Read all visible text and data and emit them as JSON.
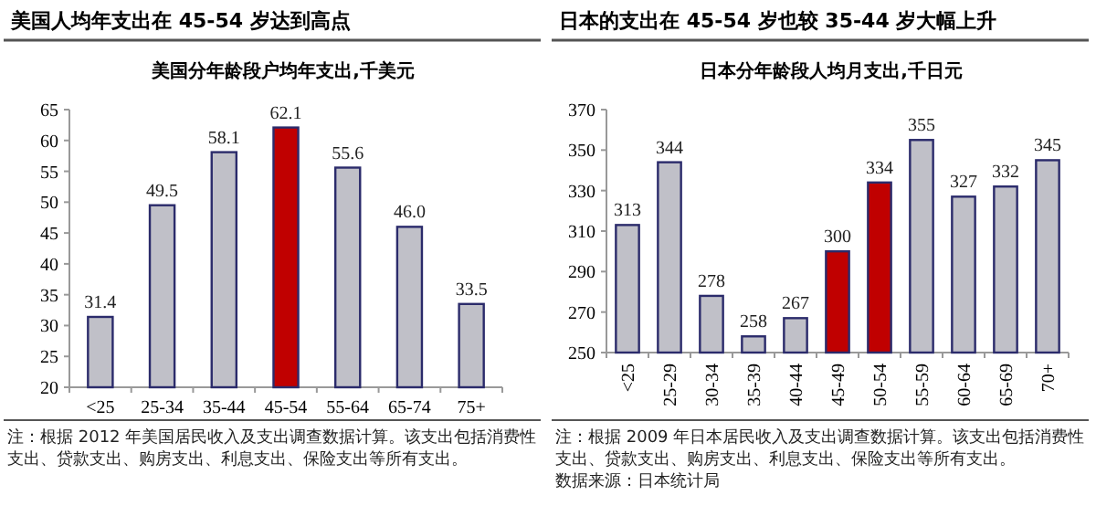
{
  "chart_data": [
    {
      "type": "bar",
      "title": "美国人均年支出在 45-54 岁达到高点",
      "subtitle": "美国分年龄段户均年支出,千美元",
      "categories": [
        "<25",
        "25-34",
        "35-44",
        "45-54",
        "55-64",
        "65-74",
        "75+"
      ],
      "values": [
        31.4,
        49.5,
        58.1,
        62.1,
        55.6,
        46.0,
        33.5
      ],
      "value_labels": [
        "31.4",
        "49.5",
        "58.1",
        "62.1",
        "55.6",
        "46.0",
        "33.5"
      ],
      "colors": [
        "#c0c0c8",
        "#c0c0c8",
        "#c0c0c8",
        "#c00000",
        "#c0c0c8",
        "#c0c0c8",
        "#c0c0c8"
      ],
      "ylim": [
        20,
        65
      ],
      "yticks": [
        20,
        25,
        30,
        35,
        40,
        45,
        50,
        55,
        60,
        65
      ],
      "annotations": [
        "注：根据 2012 年美国居民收入及支出调查数据计算。该支出包括消费性支出、贷款支出、购房支出、利息支出、保险支出等所有支出。"
      ]
    },
    {
      "type": "bar",
      "title": "日本的支出在 45-54 岁也较 35-44 岁大幅上升",
      "subtitle": "日本分年龄段人均月支出,千日元",
      "categories": [
        "<25",
        "25-29",
        "30-34",
        "35-39",
        "40-44",
        "45-49",
        "50-54",
        "55-59",
        "60-64",
        "65-69",
        "70+"
      ],
      "values": [
        313,
        344,
        278,
        258,
        267,
        300,
        334,
        355,
        327,
        332,
        345
      ],
      "colors": [
        "#c0c0c8",
        "#c0c0c8",
        "#c0c0c8",
        "#c0c0c8",
        "#c0c0c8",
        "#c00000",
        "#c00000",
        "#c0c0c8",
        "#c0c0c8",
        "#c0c0c8",
        "#c0c0c8"
      ],
      "data_labels": true,
      "ylim": [
        250,
        370
      ],
      "yticks": [
        250,
        270,
        290,
        310,
        330,
        350,
        370
      ],
      "annotations": [
        "注：根据 2009 年日本居民收入及支出调查数据计算。该支出包括消费性支出、贷款支出、购房支出、利息支出、保险支出等所有支出。",
        "数据来源：日本统计局"
      ]
    }
  ]
}
